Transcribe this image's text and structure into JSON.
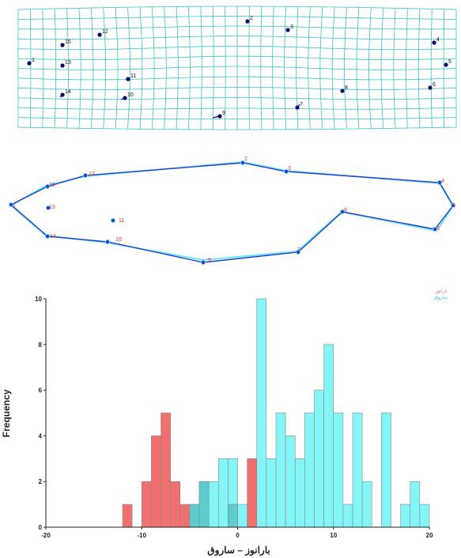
{
  "colors": {
    "grid": "#3cc3c6",
    "landmark_dot": "#0b0b6b",
    "landmark_label": "#111111",
    "outline_a": "#6ee6f0",
    "outline_b": "#1f3fd1",
    "label_red": "#e0302a",
    "hist_red": "#f07070",
    "hist_cyan": "#7cf4f6",
    "hist_overlap": "#56c4c4",
    "axis": "#222222"
  },
  "deformation_grid": {
    "landmark_labels": [
      "1",
      "2",
      "3",
      "4",
      "5",
      "6",
      "7",
      "8",
      "9",
      "10",
      "11",
      "12",
      "13",
      "14",
      "15"
    ]
  },
  "outline": {
    "point_labels": [
      "2",
      "3",
      "4",
      "5",
      "6",
      "7",
      "8",
      "9",
      "10",
      "14",
      "1",
      "13",
      "11",
      "12",
      "15"
    ]
  },
  "chart_data": {
    "type": "bar",
    "title": "",
    "xlabel": "بارانوز – ساروق",
    "ylabel": "Frequency",
    "xlim": [
      -20,
      20
    ],
    "ylim": [
      0,
      10
    ],
    "xticks": [
      -20,
      -10,
      0,
      10,
      20
    ],
    "yticks": [
      0,
      2,
      4,
      6,
      8,
      10
    ],
    "bin_width": 1,
    "legend_position": "top-right",
    "series": [
      {
        "name": "بارانوز",
        "color": "#f07070",
        "bin_starts": [
          -12,
          -10,
          -9,
          -8,
          -7,
          -6,
          -5,
          -4,
          -1,
          1
        ],
        "values": [
          1,
          2,
          4,
          5,
          2,
          1,
          1,
          2,
          1,
          3
        ]
      },
      {
        "name": "ساروق",
        "color": "#7cf4f6",
        "bin_starts": [
          -5,
          -4,
          -3,
          -2,
          -1,
          0,
          2,
          3,
          4,
          5,
          6,
          7,
          8,
          9,
          10,
          11,
          12,
          13,
          15,
          17,
          18,
          19
        ],
        "values": [
          1,
          2,
          2,
          3,
          3,
          1,
          10,
          3,
          5,
          4,
          3,
          5,
          6,
          8,
          5,
          1,
          5,
          2,
          5,
          1,
          2,
          1
        ]
      }
    ]
  }
}
